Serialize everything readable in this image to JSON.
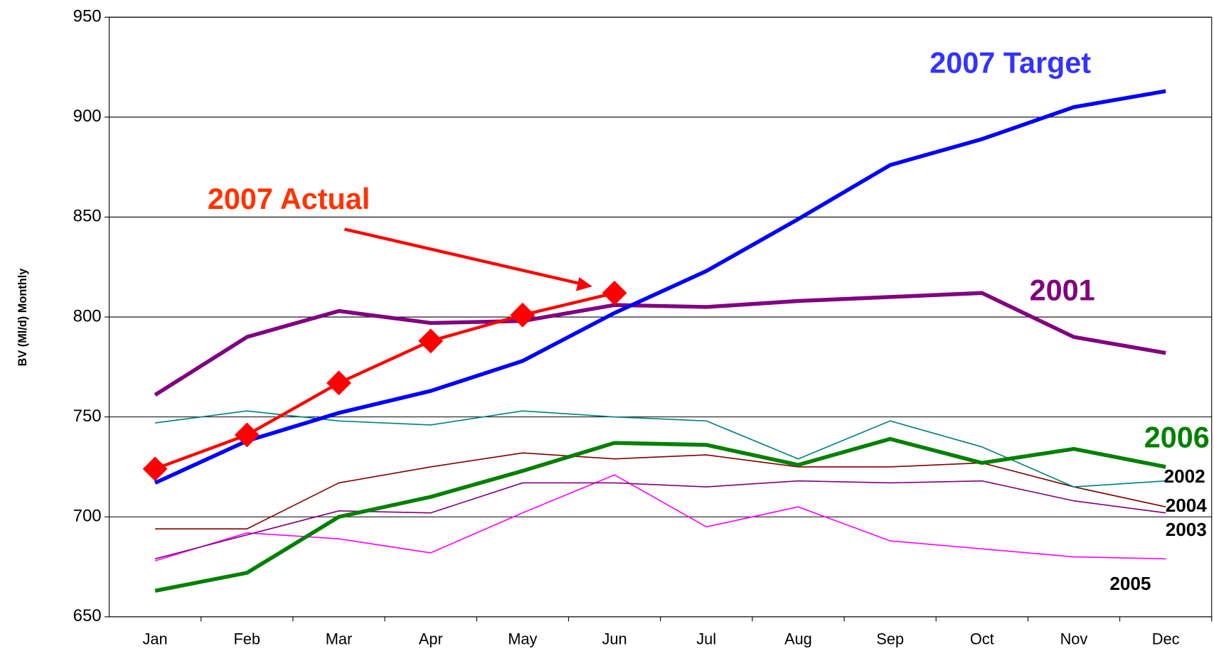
{
  "chart_data": {
    "type": "line",
    "y_label": "BV (Ml/d) Monthly",
    "categories": [
      "Jan",
      "Feb",
      "Mar",
      "Apr",
      "May",
      "Jun",
      "Jul",
      "Aug",
      "Sep",
      "Oct",
      "Nov",
      "Dec"
    ],
    "ylim": [
      650,
      950
    ],
    "yticks": [
      650,
      700,
      750,
      800,
      850,
      900,
      950
    ],
    "grid": true,
    "series": [
      {
        "name": "2005",
        "color": "#ff00ff",
        "label_color": "#000000",
        "values": [
          678,
          692,
          689,
          682,
          702,
          721,
          695,
          705,
          688,
          684,
          680,
          679
        ]
      },
      {
        "name": "2003",
        "color": "#800080",
        "label_color": "#000000",
        "values": [
          679,
          691,
          703,
          702,
          717,
          717,
          715,
          718,
          717,
          718,
          708,
          702
        ]
      },
      {
        "name": "2004",
        "color": "#800000",
        "label_color": "#000000",
        "values": [
          694,
          694,
          717,
          725,
          732,
          729,
          731,
          725,
          725,
          727,
          715,
          705
        ]
      },
      {
        "name": "2002",
        "color": "#008080",
        "label_color": "#000000",
        "values": [
          747,
          753,
          748,
          746,
          753,
          750,
          748,
          729,
          748,
          735,
          715,
          718
        ]
      },
      {
        "name": "2006",
        "color": "#008000",
        "label_color": "#008000",
        "values": [
          663,
          672,
          700,
          710,
          723,
          737,
          736,
          726,
          739,
          727,
          734,
          725
        ]
      },
      {
        "name": "2001",
        "color": "#800080",
        "label_color": "#800080",
        "values": [
          761,
          790,
          803,
          797,
          798,
          806,
          805,
          808,
          810,
          812,
          790,
          782
        ]
      },
      {
        "name": "2007 Target",
        "color": "#0000ff",
        "label_color": "#3333ff",
        "values": [
          717,
          738,
          752,
          763,
          778,
          802,
          823,
          849,
          876,
          889,
          905,
          913
        ]
      },
      {
        "name": "2007 Actual",
        "color": "#ff0000",
        "label_color": "#ff3300",
        "marker": "diamond",
        "values": [
          724,
          741,
          767,
          788,
          801,
          812,
          null,
          null,
          null,
          null,
          null,
          null
        ]
      }
    ]
  }
}
